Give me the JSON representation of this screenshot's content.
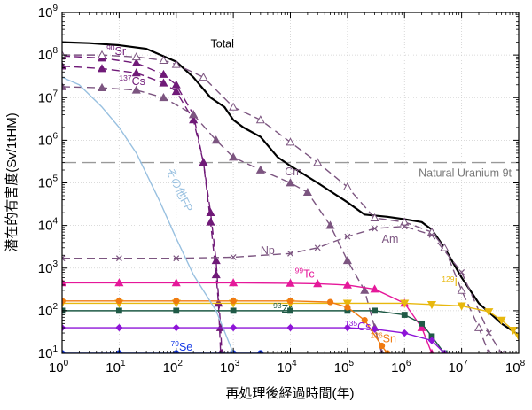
{
  "chart_data": {
    "type": "line",
    "title": "",
    "xlabel": "再処理後経過時間(年)",
    "ylabel": "潜在的有害度(Sv/1tHM)",
    "x_scale": "log",
    "y_scale": "log",
    "xlim": [
      1,
      100000000
    ],
    "ylim": [
      10,
      1000000000
    ],
    "grid": true,
    "x_ticks": [
      {
        "value": 1,
        "base": "10",
        "exp": "0"
      },
      {
        "value": 10,
        "base": "10",
        "exp": "1"
      },
      {
        "value": 100,
        "base": "10",
        "exp": "2"
      },
      {
        "value": 1000,
        "base": "10",
        "exp": "3"
      },
      {
        "value": 10000,
        "base": "10",
        "exp": "4"
      },
      {
        "value": 100000,
        "base": "10",
        "exp": "5"
      },
      {
        "value": 1000000,
        "base": "10",
        "exp": "6"
      },
      {
        "value": 10000000,
        "base": "10",
        "exp": "7"
      },
      {
        "value": 100000000,
        "base": "10",
        "exp": "8"
      }
    ],
    "y_ticks": [
      {
        "value": 10,
        "base": "10",
        "exp": "1"
      },
      {
        "value": 100,
        "base": "10",
        "exp": "2"
      },
      {
        "value": 1000,
        "base": "10",
        "exp": "3"
      },
      {
        "value": 10000,
        "base": "10",
        "exp": "4"
      },
      {
        "value": 100000,
        "base": "10",
        "exp": "5"
      },
      {
        "value": 1000000,
        "base": "10",
        "exp": "6"
      },
      {
        "value": 10000000,
        "base": "10",
        "exp": "7"
      },
      {
        "value": 100000000,
        "base": "10",
        "exp": "8"
      },
      {
        "value": 1000000000,
        "base": "10",
        "exp": "9"
      }
    ],
    "reference_line": {
      "label": "Natural Uranium 9t",
      "y": 300000,
      "color": "#999999"
    },
    "series": [
      {
        "key": "total",
        "name": "Total",
        "color": "#000000",
        "dash": "solid",
        "marker": "none",
        "label": {
          "sup": "",
          "text": "Total",
          "x": 400,
          "y": 150000000
        },
        "points": [
          [
            1,
            200000000
          ],
          [
            3,
            190000000
          ],
          [
            10,
            170000000
          ],
          [
            30,
            140000000
          ],
          [
            100,
            70000000
          ],
          [
            200,
            30000000
          ],
          [
            400,
            10000000
          ],
          [
            700,
            6000000
          ],
          [
            1000,
            3000000
          ],
          [
            1500,
            2000000
          ],
          [
            3000,
            1200000
          ],
          [
            6000,
            400000
          ],
          [
            10000,
            250000
          ],
          [
            30000,
            100000
          ],
          [
            100000,
            35000
          ],
          [
            200000,
            18000
          ],
          [
            500000,
            16000
          ],
          [
            1000000,
            14000
          ],
          [
            2000000,
            12000
          ],
          [
            3000000,
            8000
          ],
          [
            5000000,
            3000
          ],
          [
            10000000,
            600
          ],
          [
            20000000,
            150
          ],
          [
            50000000,
            50
          ],
          [
            100000000,
            27
          ]
        ]
      },
      {
        "key": "sr90",
        "name": "90Sr",
        "color": "#701a78",
        "dash": "9,5",
        "marker": "triangle",
        "label": {
          "sup": "90",
          "text": "Sr",
          "x": 6,
          "y": 100000000
        },
        "points": [
          [
            1,
            95000000
          ],
          [
            5,
            85000000
          ],
          [
            20,
            65000000
          ],
          [
            60,
            35000000
          ],
          [
            100,
            20000000
          ],
          [
            200,
            4000000
          ],
          [
            300,
            300000
          ],
          [
            400,
            12000
          ],
          [
            500,
            700
          ],
          [
            550,
            150
          ],
          [
            600,
            10
          ]
        ]
      },
      {
        "key": "cs137",
        "name": "137Cs",
        "color": "#701a78",
        "dash": "9,5",
        "marker": "triangle",
        "label": {
          "sup": "137",
          "text": "Cs",
          "x": 10,
          "y": 20000000
        },
        "points": [
          [
            1,
            55000000
          ],
          [
            5,
            48000000
          ],
          [
            20,
            38000000
          ],
          [
            60,
            22000000
          ],
          [
            100,
            14000000
          ],
          [
            200,
            3000000
          ],
          [
            300,
            300000
          ],
          [
            400,
            20000
          ],
          [
            500,
            1500
          ],
          [
            600,
            40
          ],
          [
            630,
            10
          ]
        ]
      },
      {
        "key": "am",
        "name": "Am",
        "color": "#7c5580",
        "dash": "9,5",
        "marker": "triangle-open",
        "label": {
          "sup": "",
          "text": "Am",
          "x": 400000,
          "y": 4000
        },
        "points": [
          [
            1,
            100000000
          ],
          [
            5,
            100000000
          ],
          [
            20,
            90000000
          ],
          [
            60,
            75000000
          ],
          [
            100,
            60000000
          ],
          [
            300,
            30000000
          ],
          [
            1000,
            6000000
          ],
          [
            3000,
            3000000
          ],
          [
            10000,
            900000
          ],
          [
            30000,
            300000
          ],
          [
            100000,
            80000
          ],
          [
            300000,
            15000
          ],
          [
            1000000,
            12000
          ],
          [
            3000000,
            7000
          ],
          [
            5000000,
            3000
          ],
          [
            10000000,
            300
          ],
          [
            20000000,
            40
          ],
          [
            30000000,
            10
          ]
        ]
      },
      {
        "key": "cm",
        "name": "Cm",
        "color": "#7c5580",
        "dash": "9,5",
        "marker": "triangle",
        "label": {
          "sup": "",
          "text": "Cm",
          "x": 8000,
          "y": 150000
        },
        "points": [
          [
            1,
            18000000
          ],
          [
            5,
            17000000
          ],
          [
            20,
            15000000
          ],
          [
            60,
            10000000
          ],
          [
            200,
            4000000
          ],
          [
            500,
            1000000
          ],
          [
            1000,
            400000
          ],
          [
            3000,
            200000
          ],
          [
            10000,
            100000
          ],
          [
            20000,
            60000
          ],
          [
            50000,
            10000
          ],
          [
            100000,
            1500
          ],
          [
            200000,
            300
          ],
          [
            300000,
            40
          ],
          [
            400000,
            10
          ]
        ]
      },
      {
        "key": "np",
        "name": "Np",
        "color": "#7c5580",
        "dash": "9,5",
        "marker": "x",
        "label": {
          "sup": "",
          "text": "Np",
          "x": 3000,
          "y": 2100
        },
        "points": [
          [
            1,
            1700
          ],
          [
            10,
            1700
          ],
          [
            100,
            1700
          ],
          [
            1000,
            1800
          ],
          [
            10000,
            2200
          ],
          [
            30000,
            3000
          ],
          [
            100000,
            5500
          ],
          [
            300000,
            8500
          ],
          [
            1000000,
            9500
          ],
          [
            3000000,
            6000
          ],
          [
            10000000,
            800
          ],
          [
            30000000,
            30
          ],
          [
            50000000,
            10
          ]
        ]
      },
      {
        "key": "tc99",
        "name": "99Tc",
        "color": "#e5189a",
        "dash": "solid",
        "marker": "triangle",
        "label": {
          "sup": "99",
          "text": "Tc",
          "x": 12000,
          "y": 600
        },
        "points": [
          [
            1,
            450
          ],
          [
            10,
            450
          ],
          [
            100,
            450
          ],
          [
            1000,
            450
          ],
          [
            10000,
            440
          ],
          [
            30000,
            430
          ],
          [
            100000,
            400
          ],
          [
            300000,
            320
          ],
          [
            1000000,
            150
          ],
          [
            2000000,
            40
          ],
          [
            3000000,
            10
          ]
        ]
      },
      {
        "key": "i129",
        "name": "129I",
        "color": "#e8b80e",
        "dash": "solid",
        "marker": "triangle-down",
        "label": {
          "sup": "129",
          "text": "I",
          "x": 4500000,
          "y": 380
        },
        "points": [
          [
            1,
            150
          ],
          [
            10,
            150
          ],
          [
            100,
            150
          ],
          [
            1000,
            150
          ],
          [
            10000,
            150
          ],
          [
            100000,
            150
          ],
          [
            1000000,
            150
          ],
          [
            3000000,
            140
          ],
          [
            10000000,
            130
          ],
          [
            30000000,
            95
          ],
          [
            50000000,
            60
          ],
          [
            80000000,
            35
          ],
          [
            100000000,
            25
          ]
        ]
      },
      {
        "key": "zr93",
        "name": "93Zr",
        "color": "#1f5a46",
        "dash": "solid",
        "marker": "square",
        "label": {
          "sup": "93",
          "text": "Zr",
          "x": 5000,
          "y": 90
        },
        "points": [
          [
            1,
            100
          ],
          [
            10,
            100
          ],
          [
            100,
            100
          ],
          [
            1000,
            100
          ],
          [
            10000,
            100
          ],
          [
            100000,
            100
          ],
          [
            300000,
            100
          ],
          [
            1000000,
            80
          ],
          [
            2000000,
            50
          ],
          [
            3000000,
            25
          ],
          [
            5000000,
            10
          ]
        ]
      },
      {
        "key": "cs135",
        "name": "135Cs",
        "color": "#8e14d8",
        "dash": "solid",
        "marker": "diamond",
        "label": {
          "sup": "135",
          "text": "Cs",
          "x": 90000,
          "y": 35
        },
        "points": [
          [
            1,
            40
          ],
          [
            10,
            40
          ],
          [
            100,
            40
          ],
          [
            1000,
            40
          ],
          [
            10000,
            40
          ],
          [
            100000,
            40
          ],
          [
            300000,
            37
          ],
          [
            1000000,
            30
          ],
          [
            3000000,
            20
          ],
          [
            5000000,
            10
          ]
        ]
      },
      {
        "key": "sn126",
        "name": "126Sn",
        "color": "#f07a10",
        "dash": "solid",
        "marker": "circle",
        "label": {
          "sup": "126",
          "text": "Sn",
          "x": 250000,
          "y": 18
        },
        "points": [
          [
            1,
            170
          ],
          [
            10,
            170
          ],
          [
            100,
            170
          ],
          [
            1000,
            170
          ],
          [
            10000,
            170
          ],
          [
            50000,
            160
          ],
          [
            100000,
            120
          ],
          [
            200000,
            60
          ],
          [
            400000,
            15
          ],
          [
            500000,
            10
          ]
        ]
      },
      {
        "key": "se79",
        "name": "79Se",
        "color": "#1338e6",
        "dash": "solid",
        "marker": "circle",
        "label": {
          "sup": "79",
          "text": "Se",
          "x": 80,
          "y": 11.5
        },
        "points": [
          [
            1,
            10
          ],
          [
            10,
            10
          ],
          [
            100,
            10
          ],
          [
            1000,
            10
          ],
          [
            3000,
            10
          ]
        ]
      },
      {
        "key": "otherfp",
        "name": "その他FP",
        "color": "#98c0e0",
        "dash": "solid",
        "marker": "none",
        "label": {
          "sup": "",
          "text": "その他FP",
          "x": 65,
          "y": 200000,
          "rotate": 64
        },
        "points": [
          [
            1,
            30000000
          ],
          [
            2,
            20000000
          ],
          [
            5,
            6000000
          ],
          [
            10,
            2000000
          ],
          [
            20,
            500000
          ],
          [
            50,
            40000
          ],
          [
            100,
            5000
          ],
          [
            200,
            700
          ],
          [
            500,
            100
          ],
          [
            1000,
            10
          ]
        ]
      }
    ]
  }
}
